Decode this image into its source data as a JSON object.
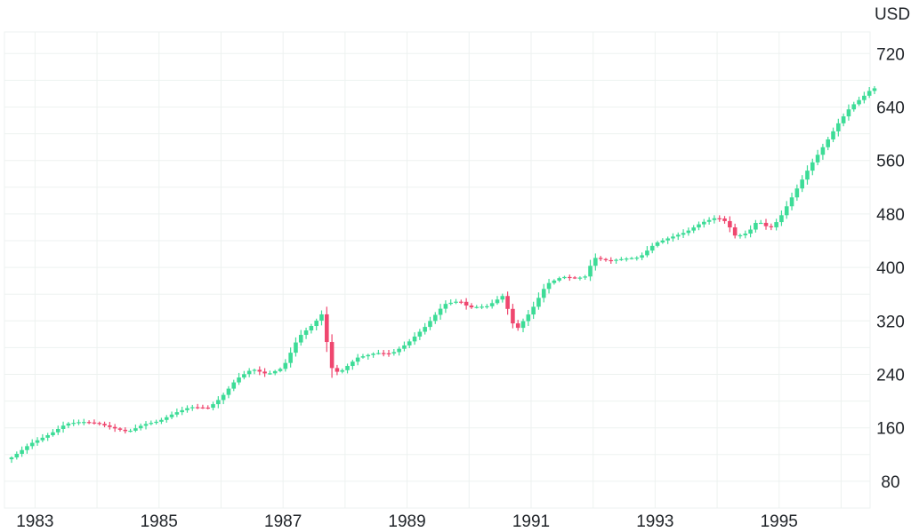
{
  "chart_data": {
    "type": "candlestick",
    "title": "",
    "xlabel": "",
    "ylabel": "USD",
    "ylim": [
      40,
      750
    ],
    "xlim": [
      1982.55,
      1996.55
    ],
    "grid": true,
    "colors": {
      "up": "#3ddc97",
      "down": "#ef476f",
      "grid": "#edf2f0",
      "axis_text": "#1f2328"
    },
    "y_ticks": [
      80,
      160,
      240,
      320,
      400,
      480,
      560,
      640,
      720
    ],
    "x_ticks": [
      {
        "value": 1983,
        "label": "1983"
      },
      {
        "value": 1985,
        "label": "1985"
      },
      {
        "value": 1987,
        "label": "1987"
      },
      {
        "value": 1989,
        "label": "1989"
      },
      {
        "value": 1991,
        "label": "1991"
      },
      {
        "value": 1993,
        "label": "1993"
      },
      {
        "value": 1995,
        "label": "1995"
      }
    ],
    "candle_interval": "month",
    "anchors": [
      [
        1982.58,
        113
      ],
      [
        1982.75,
        124
      ],
      [
        1982.92,
        136
      ],
      [
        1983.25,
        151
      ],
      [
        1983.5,
        166
      ],
      [
        1983.75,
        169
      ],
      [
        1984.0,
        167
      ],
      [
        1984.25,
        160
      ],
      [
        1984.5,
        154
      ],
      [
        1984.75,
        165
      ],
      [
        1985.0,
        170
      ],
      [
        1985.25,
        182
      ],
      [
        1985.5,
        191
      ],
      [
        1985.8,
        190
      ],
      [
        1986.0,
        205
      ],
      [
        1986.25,
        233
      ],
      [
        1986.5,
        248
      ],
      [
        1986.75,
        240
      ],
      [
        1987.0,
        250
      ],
      [
        1987.25,
        296
      ],
      [
        1987.5,
        316
      ],
      [
        1987.65,
        333
      ],
      [
        1987.75,
        252
      ],
      [
        1987.9,
        242
      ],
      [
        1988.2,
        265
      ],
      [
        1988.5,
        272
      ],
      [
        1988.75,
        271
      ],
      [
        1989.0,
        286
      ],
      [
        1989.3,
        312
      ],
      [
        1989.6,
        345
      ],
      [
        1989.85,
        350
      ],
      [
        1990.0,
        340
      ],
      [
        1990.3,
        342
      ],
      [
        1990.55,
        358
      ],
      [
        1990.65,
        330
      ],
      [
        1990.75,
        305
      ],
      [
        1991.0,
        335
      ],
      [
        1991.25,
        375
      ],
      [
        1991.5,
        386
      ],
      [
        1991.75,
        384
      ],
      [
        1991.9,
        387
      ],
      [
        1992.0,
        415
      ],
      [
        1992.25,
        410
      ],
      [
        1992.5,
        413
      ],
      [
        1992.75,
        415
      ],
      [
        1993.0,
        436
      ],
      [
        1993.25,
        445
      ],
      [
        1993.5,
        453
      ],
      [
        1993.75,
        467
      ],
      [
        1994.0,
        475
      ],
      [
        1994.15,
        468
      ],
      [
        1994.3,
        446
      ],
      [
        1994.5,
        452
      ],
      [
        1994.65,
        470
      ],
      [
        1994.85,
        458
      ],
      [
        1995.0,
        472
      ],
      [
        1995.25,
        512
      ],
      [
        1995.5,
        552
      ],
      [
        1995.75,
        586
      ],
      [
        1995.95,
        615
      ],
      [
        1996.15,
        640
      ],
      [
        1996.35,
        655
      ],
      [
        1996.5,
        668
      ]
    ]
  }
}
